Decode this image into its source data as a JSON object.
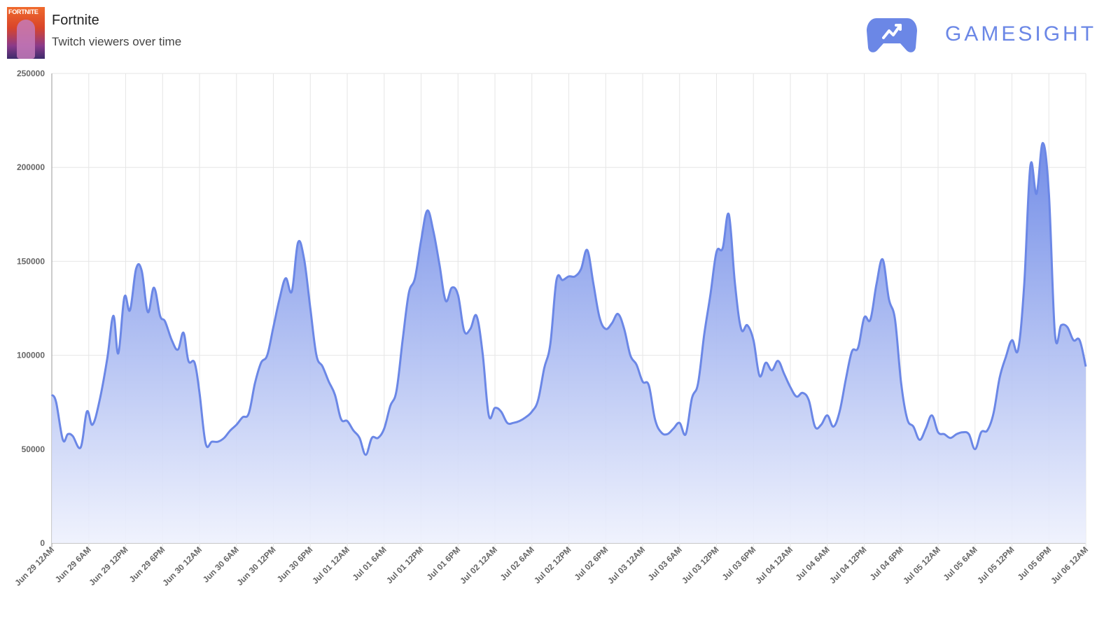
{
  "header": {
    "game_title": "Fortnite",
    "subtitle": "Twitch viewers over time",
    "cover_text": "FORTNITE",
    "brand_name": "GAMESIGHT",
    "brand_icon": "gamepad-trend-icon"
  },
  "colors": {
    "line": "#6b87e6",
    "fill_top": "#6b87e6",
    "fill_bottom": "#eef1fd",
    "grid": "#e6e6e6",
    "brand": "#6b87e6"
  },
  "chart_data": {
    "type": "area",
    "title": "",
    "xlabel": "",
    "ylabel": "",
    "ylim": [
      0,
      250000
    ],
    "y_ticks": [
      "0",
      "50000",
      "100000",
      "150000",
      "200000",
      "250000"
    ],
    "x_ticks": [
      "Jun 29 12AM",
      "Jun 29 6AM",
      "Jun 29 12PM",
      "Jun 29 6PM",
      "Jun 30 12AM",
      "Jun 30 6AM",
      "Jun 30 12PM",
      "Jun 30 6PM",
      "Jul 01 12AM",
      "Jul 01 6AM",
      "Jul 01 12PM",
      "Jul 01 6PM",
      "Jul 02 12AM",
      "Jul 02 6AM",
      "Jul 02 12PM",
      "Jul 02 6PM",
      "Jul 03 12AM",
      "Jul 03 6AM",
      "Jul 03 12PM",
      "Jul 03 6PM",
      "Jul 04 12AM",
      "Jul 04 6AM",
      "Jul 04 12PM",
      "Jul 04 6PM",
      "Jul 05 12AM",
      "Jul 05 6AM",
      "Jul 05 12PM",
      "Jul 05 6PM",
      "Jul 06 12AM"
    ],
    "grid": true,
    "legend": "none",
    "series": [
      {
        "x_unit": "hours since Jun 29 12AM",
        "points": [
          [
            0,
            79000
          ],
          [
            0.7,
            75000
          ],
          [
            1.8,
            55000
          ],
          [
            2.6,
            58000
          ],
          [
            3.4,
            57000
          ],
          [
            4.7,
            51000
          ],
          [
            5.7,
            70000
          ],
          [
            6.6,
            63000
          ],
          [
            7.7,
            75000
          ],
          [
            9.0,
            98000
          ],
          [
            10.0,
            121000
          ],
          [
            10.8,
            101000
          ],
          [
            11.8,
            131000
          ],
          [
            12.7,
            124000
          ],
          [
            13.7,
            146000
          ],
          [
            14.6,
            145000
          ],
          [
            15.6,
            123000
          ],
          [
            16.6,
            136000
          ],
          [
            17.6,
            121000
          ],
          [
            18.4,
            118000
          ],
          [
            19.5,
            108000
          ],
          [
            20.5,
            103000
          ],
          [
            21.4,
            112000
          ],
          [
            22.2,
            97000
          ],
          [
            23.2,
            96000
          ],
          [
            24.0,
            80000
          ],
          [
            25.0,
            53000
          ],
          [
            26.0,
            54000
          ],
          [
            27.0,
            54000
          ],
          [
            28.0,
            56000
          ],
          [
            29.0,
            60000
          ],
          [
            30.0,
            63000
          ],
          [
            31.0,
            67000
          ],
          [
            32.0,
            69000
          ],
          [
            33.0,
            85000
          ],
          [
            34.0,
            96000
          ],
          [
            35.0,
            100000
          ],
          [
            36.0,
            115000
          ],
          [
            37.0,
            130000
          ],
          [
            38.0,
            141000
          ],
          [
            39.0,
            134000
          ],
          [
            40.0,
            160000
          ],
          [
            41.0,
            151000
          ],
          [
            42.0,
            125000
          ],
          [
            43.0,
            100000
          ],
          [
            44.0,
            94000
          ],
          [
            45.0,
            86000
          ],
          [
            46.0,
            79000
          ],
          [
            47.0,
            66000
          ],
          [
            48.0,
            65000
          ],
          [
            49.0,
            60000
          ],
          [
            50.0,
            56000
          ],
          [
            51.0,
            47000
          ],
          [
            52.0,
            56000
          ],
          [
            53.0,
            56000
          ],
          [
            54.0,
            61000
          ],
          [
            55.0,
            73000
          ],
          [
            56.0,
            81000
          ],
          [
            57.0,
            108000
          ],
          [
            58.0,
            133000
          ],
          [
            59.0,
            141000
          ],
          [
            60.0,
            161000
          ],
          [
            61.0,
            177000
          ],
          [
            62.0,
            166000
          ],
          [
            63.0,
            148000
          ],
          [
            64.0,
            129000
          ],
          [
            65.0,
            136000
          ],
          [
            66.0,
            132000
          ],
          [
            67.0,
            113000
          ],
          [
            68.0,
            114000
          ],
          [
            69.0,
            121000
          ],
          [
            70.0,
            101000
          ],
          [
            71.0,
            68000
          ],
          [
            72.0,
            72000
          ],
          [
            73.0,
            70000
          ],
          [
            74.0,
            64000
          ],
          [
            75.0,
            64000
          ],
          [
            76.0,
            65000
          ],
          [
            77.0,
            67000
          ],
          [
            78.0,
            70000
          ],
          [
            79.0,
            76000
          ],
          [
            80.0,
            93000
          ],
          [
            81.0,
            106000
          ],
          [
            82.0,
            140000
          ],
          [
            83.0,
            140000
          ],
          [
            84.0,
            142000
          ],
          [
            85.0,
            142000
          ],
          [
            86.0,
            146000
          ],
          [
            87.0,
            156000
          ],
          [
            88.0,
            138000
          ],
          [
            89.0,
            120000
          ],
          [
            90.0,
            114000
          ],
          [
            91.0,
            117000
          ],
          [
            92.0,
            122000
          ],
          [
            93.0,
            114000
          ],
          [
            94.0,
            100000
          ],
          [
            95.0,
            95000
          ],
          [
            96.0,
            86000
          ],
          [
            97.0,
            84000
          ],
          [
            98.0,
            66000
          ],
          [
            99.0,
            59000
          ],
          [
            100.0,
            58000
          ],
          [
            101.0,
            61000
          ],
          [
            102.0,
            64000
          ],
          [
            103.0,
            58000
          ],
          [
            104.0,
            77000
          ],
          [
            105.0,
            85000
          ],
          [
            106.0,
            111000
          ],
          [
            107.0,
            132000
          ],
          [
            108.0,
            155000
          ],
          [
            109.0,
            157000
          ],
          [
            110.0,
            175000
          ],
          [
            111.0,
            138000
          ],
          [
            112.0,
            114000
          ],
          [
            113.0,
            116000
          ],
          [
            114.0,
            108000
          ],
          [
            115.0,
            89000
          ],
          [
            116.0,
            96000
          ],
          [
            117.0,
            92000
          ],
          [
            118.0,
            97000
          ],
          [
            119.0,
            90000
          ],
          [
            120.0,
            83000
          ],
          [
            121.0,
            78000
          ],
          [
            122.0,
            80000
          ],
          [
            123.0,
            76000
          ],
          [
            124.0,
            62000
          ],
          [
            125.0,
            63000
          ],
          [
            126.0,
            68000
          ],
          [
            127.0,
            62000
          ],
          [
            128.0,
            70000
          ],
          [
            129.0,
            87000
          ],
          [
            130.0,
            102000
          ],
          [
            131.0,
            104000
          ],
          [
            132.0,
            120000
          ],
          [
            133.0,
            119000
          ],
          [
            134.0,
            138000
          ],
          [
            135.0,
            151000
          ],
          [
            136.0,
            130000
          ],
          [
            137.0,
            119000
          ],
          [
            138.0,
            85000
          ],
          [
            139.0,
            66000
          ],
          [
            140.0,
            62000
          ],
          [
            141.0,
            55000
          ],
          [
            142.0,
            61000
          ],
          [
            143.0,
            68000
          ],
          [
            144.0,
            59000
          ],
          [
            145.0,
            58000
          ],
          [
            146.0,
            56000
          ],
          [
            147.0,
            58000
          ],
          [
            148.0,
            59000
          ],
          [
            149.0,
            58000
          ],
          [
            150.0,
            50000
          ],
          [
            151.0,
            59000
          ],
          [
            152.0,
            60000
          ],
          [
            153.0,
            69000
          ],
          [
            154.0,
            88000
          ],
          [
            155.0,
            99000
          ],
          [
            156.0,
            108000
          ],
          [
            157.0,
            103000
          ],
          [
            158.0,
            138000
          ],
          [
            159.0,
            201000
          ],
          [
            160.0,
            186000
          ],
          [
            161.0,
            213000
          ],
          [
            162.0,
            186000
          ],
          [
            163.0,
            111000
          ],
          [
            164.0,
            116000
          ],
          [
            165.0,
            115000
          ],
          [
            166.0,
            108000
          ],
          [
            167.0,
            108000
          ],
          [
            168.0,
            94000
          ]
        ]
      }
    ]
  }
}
